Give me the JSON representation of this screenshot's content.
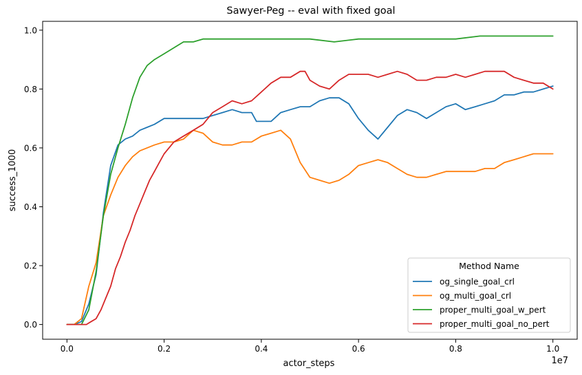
{
  "chart_data": {
    "type": "line",
    "title": "Sawyer-Peg -- eval with fixed goal",
    "xlabel": "actor_steps",
    "ylabel": "success_1000",
    "x_scale_label": "1e7",
    "xlim": [
      -0.5,
      10.5
    ],
    "ylim": [
      -0.05,
      1.03
    ],
    "x_ticks": [
      0.0,
      2.0,
      4.0,
      6.0,
      8.0,
      10.0
    ],
    "x_tick_labels": [
      "0.0",
      "0.2",
      "0.4",
      "0.6",
      "0.8",
      "1.0"
    ],
    "y_ticks": [
      0.0,
      0.2,
      0.4,
      0.6,
      0.8,
      1.0
    ],
    "y_tick_labels": [
      "0.0",
      "0.2",
      "0.4",
      "0.6",
      "0.8",
      "1.0"
    ],
    "grid": false,
    "legend": {
      "title": "Method Name",
      "placement": "lower right"
    },
    "series": [
      {
        "name": "og_single_goal_crl",
        "color": "#1f77b4",
        "x": [
          0.0,
          0.15,
          0.3,
          0.45,
          0.6,
          0.75,
          0.9,
          1.05,
          1.2,
          1.35,
          1.5,
          1.65,
          1.8,
          2.0,
          2.2,
          2.4,
          2.6,
          2.8,
          3.0,
          3.2,
          3.4,
          3.6,
          3.8,
          3.9,
          4.0,
          4.2,
          4.4,
          4.6,
          4.8,
          5.0,
          5.2,
          5.4,
          5.6,
          5.8,
          6.0,
          6.2,
          6.4,
          6.6,
          6.8,
          7.0,
          7.2,
          7.4,
          7.6,
          7.8,
          8.0,
          8.2,
          8.4,
          8.6,
          8.8,
          9.0,
          9.2,
          9.4,
          9.6,
          9.8,
          10.0
        ],
        "y": [
          0.0,
          0.0,
          0.01,
          0.07,
          0.17,
          0.38,
          0.54,
          0.61,
          0.63,
          0.64,
          0.66,
          0.67,
          0.68,
          0.7,
          0.7,
          0.7,
          0.7,
          0.7,
          0.71,
          0.72,
          0.73,
          0.72,
          0.72,
          0.69,
          0.69,
          0.69,
          0.72,
          0.73,
          0.74,
          0.74,
          0.76,
          0.77,
          0.77,
          0.75,
          0.7,
          0.66,
          0.63,
          0.67,
          0.71,
          0.73,
          0.72,
          0.7,
          0.72,
          0.74,
          0.75,
          0.73,
          0.74,
          0.75,
          0.76,
          0.78,
          0.78,
          0.79,
          0.79,
          0.8,
          0.81
        ]
      },
      {
        "name": "og_multi_goal_crl",
        "color": "#ff7f0e",
        "x": [
          0.0,
          0.15,
          0.3,
          0.45,
          0.6,
          0.75,
          0.9,
          1.05,
          1.2,
          1.35,
          1.5,
          1.65,
          1.8,
          2.0,
          2.2,
          2.4,
          2.6,
          2.8,
          3.0,
          3.2,
          3.4,
          3.6,
          3.8,
          4.0,
          4.2,
          4.4,
          4.6,
          4.8,
          5.0,
          5.2,
          5.4,
          5.6,
          5.8,
          6.0,
          6.2,
          6.4,
          6.6,
          6.8,
          7.0,
          7.2,
          7.4,
          7.6,
          7.8,
          8.0,
          8.2,
          8.4,
          8.6,
          8.8,
          9.0,
          9.2,
          9.4,
          9.6,
          9.8,
          10.0
        ],
        "y": [
          0.0,
          0.0,
          0.02,
          0.13,
          0.21,
          0.37,
          0.44,
          0.5,
          0.54,
          0.57,
          0.59,
          0.6,
          0.61,
          0.62,
          0.62,
          0.63,
          0.66,
          0.65,
          0.62,
          0.61,
          0.61,
          0.62,
          0.62,
          0.64,
          0.65,
          0.66,
          0.63,
          0.55,
          0.5,
          0.49,
          0.48,
          0.49,
          0.51,
          0.54,
          0.55,
          0.56,
          0.55,
          0.53,
          0.51,
          0.5,
          0.5,
          0.51,
          0.52,
          0.52,
          0.52,
          0.52,
          0.53,
          0.53,
          0.55,
          0.56,
          0.57,
          0.58,
          0.58,
          0.58
        ]
      },
      {
        "name": "proper_multi_goal_w_pert",
        "color": "#2ca02c",
        "x": [
          0.0,
          0.15,
          0.3,
          0.45,
          0.6,
          0.75,
          0.9,
          1.05,
          1.2,
          1.35,
          1.5,
          1.65,
          1.8,
          2.0,
          2.2,
          2.4,
          2.6,
          2.8,
          3.0,
          3.2,
          3.4,
          3.6,
          3.8,
          4.0,
          4.5,
          5.0,
          5.5,
          6.0,
          6.5,
          7.0,
          7.5,
          8.0,
          8.5,
          9.0,
          9.5,
          10.0
        ],
        "y": [
          0.0,
          0.0,
          0.0,
          0.05,
          0.18,
          0.37,
          0.51,
          0.6,
          0.68,
          0.77,
          0.84,
          0.88,
          0.9,
          0.92,
          0.94,
          0.96,
          0.96,
          0.97,
          0.97,
          0.97,
          0.97,
          0.97,
          0.97,
          0.97,
          0.97,
          0.97,
          0.96,
          0.97,
          0.97,
          0.97,
          0.97,
          0.97,
          0.98,
          0.98,
          0.98,
          0.98
        ]
      },
      {
        "name": "proper_multi_goal_no_pert",
        "color": "#d62728",
        "x": [
          0.0,
          0.2,
          0.4,
          0.5,
          0.6,
          0.7,
          0.8,
          0.9,
          1.0,
          1.1,
          1.2,
          1.3,
          1.4,
          1.5,
          1.6,
          1.7,
          1.8,
          1.9,
          2.0,
          2.2,
          2.4,
          2.6,
          2.8,
          3.0,
          3.2,
          3.4,
          3.6,
          3.8,
          4.0,
          4.2,
          4.4,
          4.6,
          4.8,
          4.9,
          5.0,
          5.2,
          5.4,
          5.6,
          5.8,
          6.0,
          6.2,
          6.4,
          6.6,
          6.8,
          7.0,
          7.2,
          7.4,
          7.6,
          7.8,
          8.0,
          8.2,
          8.4,
          8.6,
          8.8,
          9.0,
          9.2,
          9.4,
          9.6,
          9.8,
          10.0
        ],
        "y": [
          0.0,
          0.0,
          0.0,
          0.01,
          0.02,
          0.05,
          0.09,
          0.13,
          0.19,
          0.23,
          0.28,
          0.32,
          0.37,
          0.41,
          0.45,
          0.49,
          0.52,
          0.55,
          0.58,
          0.62,
          0.64,
          0.66,
          0.68,
          0.72,
          0.74,
          0.76,
          0.75,
          0.76,
          0.79,
          0.82,
          0.84,
          0.84,
          0.86,
          0.86,
          0.83,
          0.81,
          0.8,
          0.83,
          0.85,
          0.85,
          0.85,
          0.84,
          0.85,
          0.86,
          0.85,
          0.83,
          0.83,
          0.84,
          0.84,
          0.85,
          0.84,
          0.85,
          0.86,
          0.86,
          0.86,
          0.84,
          0.83,
          0.82,
          0.82,
          0.8
        ]
      }
    ]
  }
}
